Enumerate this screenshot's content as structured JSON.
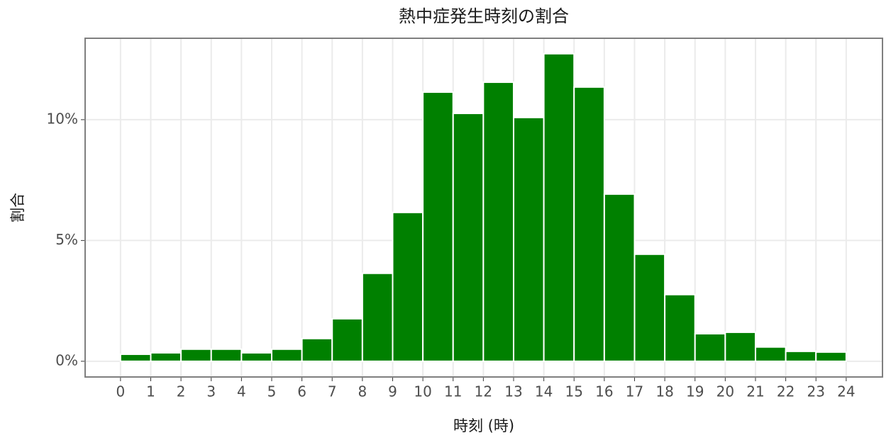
{
  "chart_data": {
    "type": "histogram",
    "title": "熱中症発生時刻の割合",
    "x_label": "時刻 (時)",
    "y_label": "割合",
    "bins": [
      0,
      1,
      2,
      3,
      4,
      5,
      6,
      7,
      8,
      9,
      10,
      11,
      12,
      13,
      14,
      15,
      16,
      17,
      18,
      19,
      20,
      21,
      22,
      23,
      24
    ],
    "values": [
      0.29,
      0.35,
      0.5,
      0.5,
      0.35,
      0.5,
      0.94,
      1.76,
      3.64,
      6.16,
      11.14,
      10.26,
      11.55,
      10.09,
      12.73,
      11.35,
      6.92,
      4.43,
      2.76,
      1.14,
      1.2,
      0.59,
      0.41,
      0.38
    ],
    "color": "#008000",
    "xlim": [
      -1.17,
      25.2
    ],
    "ylim": [
      -0.65,
      13.37
    ],
    "xticks": [
      0,
      1,
      2,
      3,
      4,
      5,
      6,
      7,
      8,
      9,
      10,
      11,
      12,
      13,
      14,
      15,
      16,
      17,
      18,
      19,
      20,
      21,
      22,
      23,
      24
    ],
    "yticks": [
      {
        "value": 0,
        "label": "0%"
      },
      {
        "value": 5,
        "label": "5%"
      },
      {
        "value": 10,
        "label": "10%"
      }
    ],
    "grid": true
  }
}
